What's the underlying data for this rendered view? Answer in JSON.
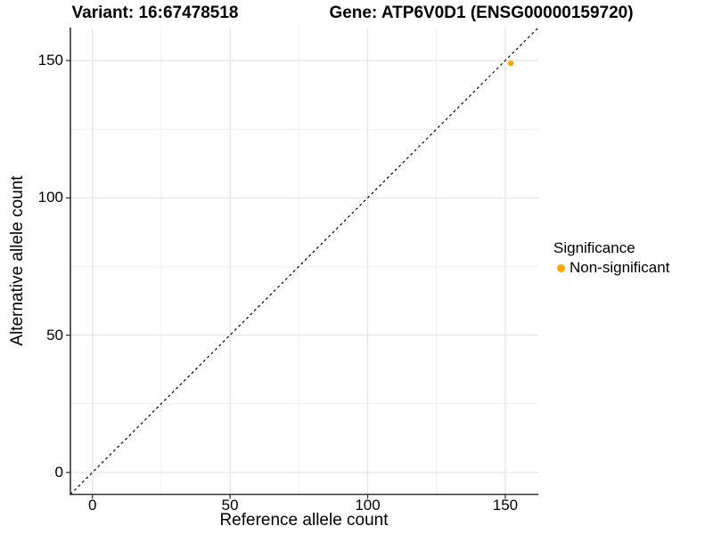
{
  "chart_data": {
    "type": "scatter",
    "title_left": "Variant: 16:67478518",
    "title_right": "Gene: ATP6V0D1 (ENSG00000159720)",
    "xlabel": "Reference allele count",
    "ylabel": "Alternative allele count",
    "xlim": [
      -8,
      162
    ],
    "ylim": [
      -8,
      162
    ],
    "x_ticks": [
      0,
      50,
      100,
      150
    ],
    "y_ticks": [
      0,
      50,
      100,
      150
    ],
    "x_minor_ticks": [
      25,
      75,
      125
    ],
    "y_minor_ticks": [
      25,
      75,
      125
    ],
    "grid": "major and minor gridlines, white panel background",
    "identity_line": {
      "equation": "y = x",
      "style": "dashed",
      "color": "#000000"
    },
    "series": [
      {
        "name": "Non-significant",
        "color": "#FFA500",
        "points": [
          {
            "x": 152,
            "y": 149
          }
        ]
      }
    ],
    "legend": {
      "title": "Significance",
      "position": "right",
      "items": [
        {
          "label": "Non-significant",
          "color": "#FFA500"
        }
      ]
    }
  },
  "colors": {
    "background": "#FFFFFF",
    "grid_major": "#E3E3E3",
    "grid_minor": "#EFEFEF",
    "axis_line": "#333333",
    "point": "#FFA500",
    "text": "#000000"
  }
}
